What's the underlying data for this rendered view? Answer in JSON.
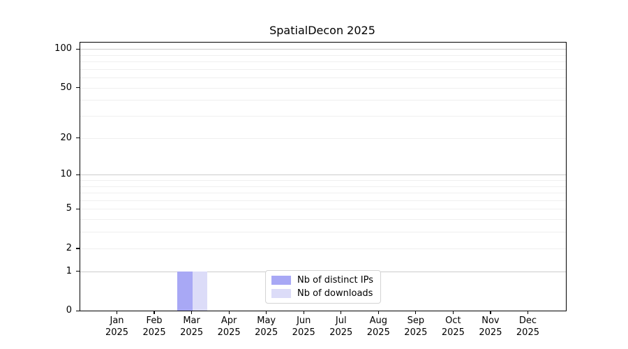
{
  "chart_data": {
    "type": "bar",
    "title": "SpatialDecon 2025",
    "categories": [
      {
        "month": "Jan",
        "year": "2025"
      },
      {
        "month": "Feb",
        "year": "2025"
      },
      {
        "month": "Mar",
        "year": "2025"
      },
      {
        "month": "Apr",
        "year": "2025"
      },
      {
        "month": "May",
        "year": "2025"
      },
      {
        "month": "Jun",
        "year": "2025"
      },
      {
        "month": "Jul",
        "year": "2025"
      },
      {
        "month": "Aug",
        "year": "2025"
      },
      {
        "month": "Sep",
        "year": "2025"
      },
      {
        "month": "Oct",
        "year": "2025"
      },
      {
        "month": "Nov",
        "year": "2025"
      },
      {
        "month": "Dec",
        "year": "2025"
      }
    ],
    "series": [
      {
        "name": "Nb of distinct IPs",
        "color": "#a8a8f5",
        "values": [
          0,
          0,
          1,
          0,
          0,
          0,
          0,
          0,
          0,
          0,
          0,
          0
        ]
      },
      {
        "name": "Nb of downloads",
        "color": "#dcdcf8",
        "values": [
          0,
          0,
          1,
          0,
          0,
          0,
          0,
          0,
          0,
          0,
          0,
          0
        ]
      }
    ],
    "y_ticks": [
      0,
      1,
      2,
      5,
      10,
      20,
      50,
      100
    ],
    "y_major_gridlines": [
      1,
      10,
      100
    ],
    "y_minor_gridlines": [
      2,
      3,
      4,
      5,
      6,
      7,
      8,
      9,
      20,
      30,
      40,
      50,
      60,
      70,
      80,
      90
    ],
    "y_scale": "log1p",
    "ylim": [
      0,
      112
    ],
    "xlabel": "",
    "ylabel": "",
    "grid": true,
    "legend_position": "lower center inside",
    "colors": {
      "grid_major": "#cccccc",
      "grid_minor": "#efefef",
      "spine": "#000000",
      "legend_border": "#d4d4d4",
      "background": "#ffffff"
    }
  }
}
